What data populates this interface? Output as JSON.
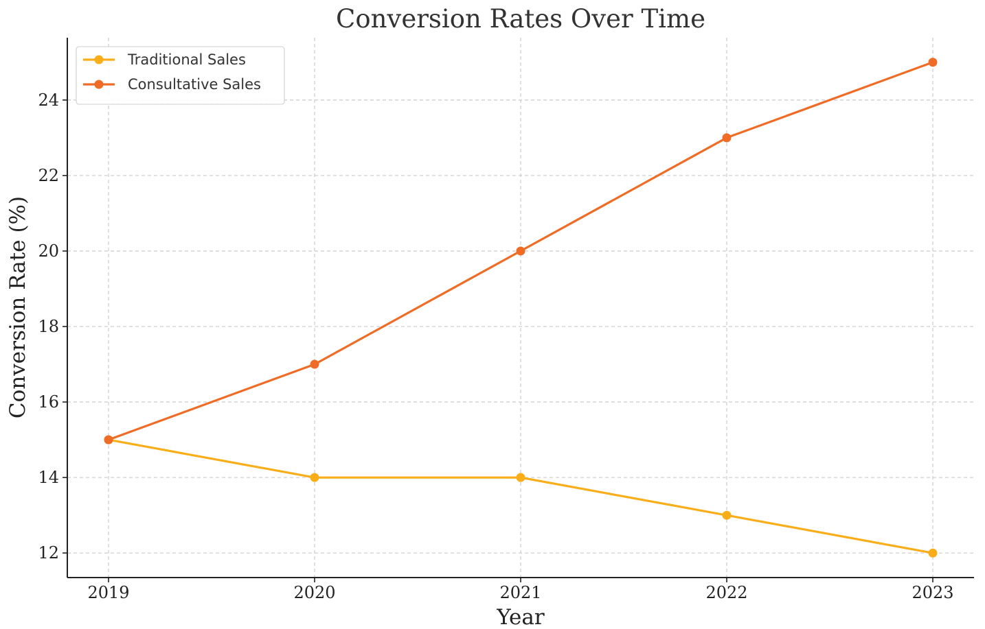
{
  "chart_data": {
    "type": "line",
    "title": "Conversion Rates Over Time",
    "xlabel": "Year",
    "ylabel": "Conversion Rate (%)",
    "categories": [
      "2019",
      "2020",
      "2021",
      "2022",
      "2023"
    ],
    "yticks": [
      12,
      14,
      16,
      18,
      20,
      22,
      24
    ],
    "ylim": [
      11.35,
      25.65
    ],
    "grid": true,
    "legend_position": "top-left",
    "series": [
      {
        "name": "Traditional Sales",
        "color": "#F9AE19",
        "values": [
          15,
          14,
          14,
          13,
          12
        ]
      },
      {
        "name": "Consultative Sales",
        "color": "#EE6C25",
        "values": [
          15,
          17,
          20,
          23,
          25
        ]
      }
    ]
  }
}
